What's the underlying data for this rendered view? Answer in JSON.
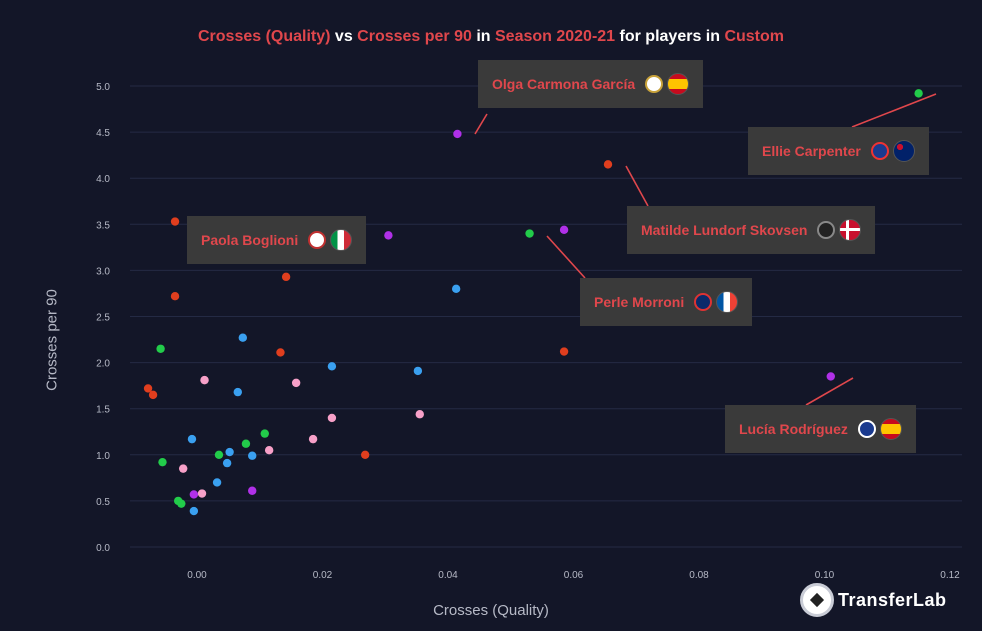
{
  "title": {
    "parts": [
      {
        "text": "Crosses (Quality)",
        "hl": true
      },
      {
        "text": " vs ",
        "hl": false
      },
      {
        "text": "Crosses per 90",
        "hl": true
      },
      {
        "text": " in ",
        "hl": false
      },
      {
        "text": "Season 2020-21",
        "hl": true
      },
      {
        "text": " for players in ",
        "hl": false
      },
      {
        "text": "Custom",
        "hl": true
      }
    ]
  },
  "logo": {
    "text": "TransferLab"
  },
  "chart_data": {
    "type": "scatter",
    "xlabel": "Crosses (Quality)",
    "ylabel": "Crosses per 90",
    "xlim": [
      -0.0105,
      0.1205
    ],
    "ylim": [
      -0.1,
      5.4
    ],
    "xticks": [
      "0.00",
      "0.02",
      "0.04",
      "0.06",
      "0.08",
      "0.10",
      "0.12"
    ],
    "xtick_values": [
      0,
      0.02,
      0.04,
      0.06,
      0.08,
      0.1,
      0.12
    ],
    "yticks": [
      "0.0",
      "0.5",
      "1.0",
      "1.5",
      "2.0",
      "2.5",
      "3.0",
      "3.5",
      "4.0",
      "4.5",
      "5.0"
    ],
    "ytick_values": [
      0,
      0.5,
      1,
      1.5,
      2,
      2.5,
      3,
      3.5,
      4,
      4.5,
      5
    ],
    "grid": true,
    "colors": {
      "red": "#e03e1e",
      "green": "#22cc4a",
      "blue": "#3aa0f0",
      "pink": "#f7a0c8",
      "purple": "#b030e8"
    },
    "points": [
      {
        "x": 0.115,
        "y": 4.92,
        "c": "green"
      },
      {
        "x": 0.0415,
        "y": 4.48,
        "c": "purple"
      },
      {
        "x": 0.0655,
        "y": 4.15,
        "c": "red"
      },
      {
        "x": -0.0035,
        "y": 3.53,
        "c": "red"
      },
      {
        "x": 0.053,
        "y": 3.4,
        "c": "green"
      },
      {
        "x": 0.0585,
        "y": 3.44,
        "c": "purple"
      },
      {
        "x": 0.0305,
        "y": 3.38,
        "c": "purple"
      },
      {
        "x": 0.0142,
        "y": 2.93,
        "c": "red"
      },
      {
        "x": 0.0413,
        "y": 2.8,
        "c": "blue"
      },
      {
        "x": -0.0035,
        "y": 2.72,
        "c": "red"
      },
      {
        "x": 0.0073,
        "y": 2.27,
        "c": "blue"
      },
      {
        "x": -0.0058,
        "y": 2.15,
        "c": "green"
      },
      {
        "x": 0.0133,
        "y": 2.11,
        "c": "red"
      },
      {
        "x": 0.0585,
        "y": 2.12,
        "c": "red"
      },
      {
        "x": 0.0215,
        "y": 1.96,
        "c": "blue"
      },
      {
        "x": 0.0352,
        "y": 1.91,
        "c": "blue"
      },
      {
        "x": 0.101,
        "y": 1.85,
        "c": "purple"
      },
      {
        "x": 0.0012,
        "y": 1.81,
        "c": "pink"
      },
      {
        "x": 0.0158,
        "y": 1.78,
        "c": "pink"
      },
      {
        "x": -0.0078,
        "y": 1.72,
        "c": "red"
      },
      {
        "x": -0.007,
        "y": 1.65,
        "c": "red"
      },
      {
        "x": 0.0065,
        "y": 1.68,
        "c": "blue"
      },
      {
        "x": 0.0355,
        "y": 1.44,
        "c": "pink"
      },
      {
        "x": 0.0215,
        "y": 1.4,
        "c": "pink"
      },
      {
        "x": 0.0108,
        "y": 1.23,
        "c": "green"
      },
      {
        "x": -0.0008,
        "y": 1.17,
        "c": "blue"
      },
      {
        "x": 0.0185,
        "y": 1.17,
        "c": "pink"
      },
      {
        "x": 0.0078,
        "y": 1.12,
        "c": "green"
      },
      {
        "x": 0.0115,
        "y": 1.05,
        "c": "pink"
      },
      {
        "x": 0.0052,
        "y": 1.03,
        "c": "blue"
      },
      {
        "x": 0.0035,
        "y": 1.0,
        "c": "green"
      },
      {
        "x": 0.0088,
        "y": 0.99,
        "c": "blue"
      },
      {
        "x": 0.0268,
        "y": 1.0,
        "c": "red"
      },
      {
        "x": -0.0055,
        "y": 0.92,
        "c": "green"
      },
      {
        "x": 0.0048,
        "y": 0.91,
        "c": "blue"
      },
      {
        "x": -0.0022,
        "y": 0.85,
        "c": "pink"
      },
      {
        "x": 0.0032,
        "y": 0.7,
        "c": "blue"
      },
      {
        "x": 0.0088,
        "y": 0.61,
        "c": "purple"
      },
      {
        "x": 0.0008,
        "y": 0.58,
        "c": "pink"
      },
      {
        "x": -0.0005,
        "y": 0.57,
        "c": "purple"
      },
      {
        "x": -0.003,
        "y": 0.5,
        "c": "green"
      },
      {
        "x": -0.0025,
        "y": 0.47,
        "c": "green"
      },
      {
        "x": -0.0005,
        "y": 0.39,
        "c": "blue"
      }
    ],
    "annotations": [
      {
        "text": "Olga Carmona García",
        "px": 0.0445,
        "py": 4.45,
        "anchor": "Olga Carmona García",
        "crest": "#ffffff",
        "crestBorder": "#c8a23a",
        "flag": "es"
      },
      {
        "text": "Ellie Carpenter",
        "px": 0.1185,
        "py": 4.92,
        "crest": "#1a3a8f",
        "crestBorder": "#e33",
        "flag": "au"
      },
      {
        "text": "Matilde Lundorf Skovsen",
        "px": 0.0688,
        "py": 4.15,
        "crest": "#222222",
        "crestBorder": "#888",
        "flag": "dk"
      },
      {
        "text": "Paola Boglioni",
        "px": 0.0195,
        "py": 3.35,
        "crest": "#ffffff",
        "crestBorder": "#c03030",
        "flag": "it"
      },
      {
        "text": "Perle Morroni",
        "px": 0.0555,
        "py": 3.37,
        "crest": "#0a2a6a",
        "crestBorder": "#d33",
        "flag": "fr"
      },
      {
        "text": "Lucía Rodríguez",
        "px": 0.1045,
        "py": 1.83,
        "crest": "#1a3a8f",
        "crestBorder": "#fff",
        "flag": "es"
      }
    ]
  }
}
